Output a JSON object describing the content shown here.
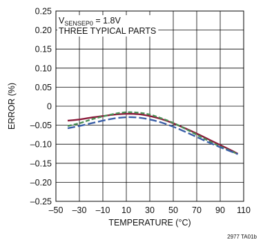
{
  "chart_data": {
    "type": "line",
    "annotation": {
      "line1_main": "V",
      "line1_sub": "SENSEP0",
      "line1_rest": " = 1.8V",
      "line2": "THREE TYPICAL PARTS"
    },
    "xlabel": "TEMPERATURE (°C)",
    "ylabel": "ERROR (%)",
    "xlim": [
      -50,
      110
    ],
    "ylim": [
      -0.25,
      0.25
    ],
    "x_ticks": [
      -50,
      -30,
      -10,
      10,
      30,
      50,
      70,
      90,
      110
    ],
    "x_tick_labels": [
      "–50",
      "–30",
      "–10",
      "10",
      "30",
      "50",
      "70",
      "90",
      "110"
    ],
    "y_ticks": [
      0.25,
      0.2,
      0.15,
      0.1,
      0.05,
      0,
      -0.05,
      -0.1,
      -0.15,
      -0.2,
      -0.25
    ],
    "y_tick_labels": [
      "0.25",
      "0.20",
      "0.15",
      "0.10",
      "0.05",
      "0",
      "–0.05",
      "–0.10",
      "–0.15",
      "–0.20",
      "–0.25"
    ],
    "grid": true,
    "footnote": "2977 TA01b",
    "series": [
      {
        "color": "#8b1a3a",
        "dash": "solid",
        "x": [
          -40,
          -30,
          -20,
          -10,
          0,
          10,
          20,
          30,
          40,
          50,
          60,
          70,
          80,
          90,
          100,
          105
        ],
        "y": [
          -0.038,
          -0.035,
          -0.03,
          -0.026,
          -0.022,
          -0.02,
          -0.021,
          -0.026,
          -0.034,
          -0.045,
          -0.058,
          -0.072,
          -0.087,
          -0.102,
          -0.117,
          -0.125
        ]
      },
      {
        "color": "#4a8f55",
        "dash": "dash",
        "x": [
          -40,
          -30,
          -20,
          -10,
          0,
          10,
          20,
          30,
          40,
          50,
          60,
          70,
          80,
          90,
          100,
          105
        ],
        "y": [
          -0.052,
          -0.045,
          -0.035,
          -0.027,
          -0.02,
          -0.016,
          -0.017,
          -0.022,
          -0.032,
          -0.044,
          -0.059,
          -0.075,
          -0.091,
          -0.106,
          -0.119,
          -0.126
        ]
      },
      {
        "color": "#3a5fa8",
        "dash": "longdash",
        "x": [
          -40,
          -30,
          -20,
          -10,
          0,
          10,
          20,
          30,
          40,
          50,
          60,
          70,
          80,
          90,
          100,
          105
        ],
        "y": [
          -0.058,
          -0.052,
          -0.045,
          -0.038,
          -0.032,
          -0.029,
          -0.03,
          -0.035,
          -0.043,
          -0.054,
          -0.067,
          -0.081,
          -0.095,
          -0.108,
          -0.12,
          -0.126
        ]
      }
    ]
  }
}
